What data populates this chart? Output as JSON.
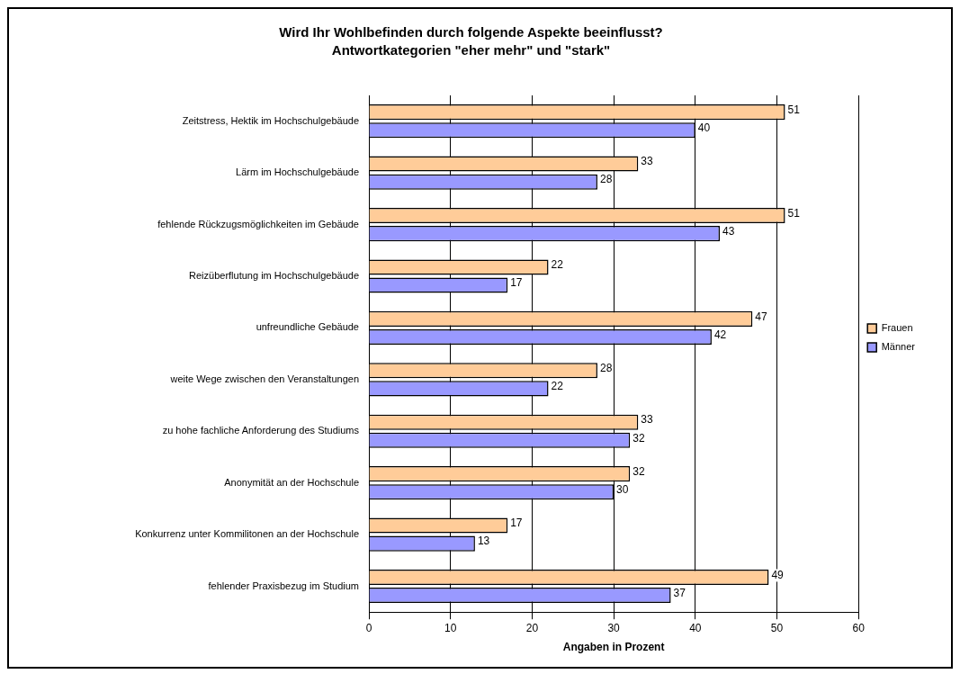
{
  "chart_data": {
    "type": "bar",
    "orientation": "horizontal",
    "title": "Wird Ihr Wohlbefinden durch folgende Aspekte beeinflusst?",
    "subtitle": "Antwortkategorien \"eher mehr\" und \"stark\"",
    "xlabel": "Angaben in Prozent",
    "categories": [
      "Zeitstress, Hektik im Hochschulgebäude",
      "Lärm im Hochschulgebäude",
      "fehlende Rückzugsmöglichkeiten im Gebäude",
      "Reizüberflutung im Hochschulgebäude",
      "unfreundliche Gebäude",
      "weite Wege zwischen den Veranstaltungen",
      "zu hohe fachliche Anforderung des Studiums",
      "Anonymität an der Hochschule",
      "Konkurrenz unter Kommilitonen an der Hochschule",
      "fehlender Praxisbezug im Studium"
    ],
    "series": [
      {
        "name": "Frauen",
        "color": "#ffcc99",
        "values": [
          51,
          33,
          51,
          22,
          47,
          28,
          33,
          32,
          17,
          49
        ]
      },
      {
        "name": "Männer",
        "color": "#9999ff",
        "values": [
          40,
          28,
          43,
          17,
          42,
          22,
          32,
          30,
          13,
          37
        ]
      }
    ],
    "xlim": [
      0,
      60
    ],
    "xticks": [
      0,
      10,
      20,
      30,
      40,
      50,
      60
    ],
    "grid": "x",
    "legend": "right",
    "data_labels": true
  }
}
